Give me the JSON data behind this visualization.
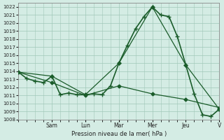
{
  "background_color": "#d4ece4",
  "grid_color": "#a0c8b8",
  "line_color": "#1a5c2a",
  "marker_color": "#1a5c2a",
  "xlabel": "Pression niveau de la mer( hPa )",
  "ylim": [
    1008,
    1022.5
  ],
  "yticks": [
    1008,
    1009,
    1010,
    1011,
    1012,
    1013,
    1014,
    1015,
    1016,
    1017,
    1018,
    1019,
    1020,
    1021,
    1022
  ],
  "xlim": [
    0,
    24
  ],
  "day_labels": [
    "Sam",
    "Lun",
    "Mar",
    "Mer",
    "Jeu",
    "V"
  ],
  "day_positions": [
    4,
    8,
    12,
    16,
    20,
    24
  ],
  "series1_x": [
    0,
    1,
    2,
    3,
    4,
    5,
    6,
    7,
    8,
    9,
    10,
    11,
    12,
    13,
    14,
    15,
    16,
    17,
    18,
    19,
    20,
    21,
    22,
    23,
    24
  ],
  "series1_y": [
    1013.9,
    1013.1,
    1012.8,
    1012.6,
    1013.4,
    1011.1,
    1011.3,
    1011.1,
    1011.1,
    1011.2,
    1011.1,
    1012.2,
    1015.0,
    1017.2,
    1019.3,
    1020.8,
    1022.0,
    1021.0,
    1020.8,
    1018.3,
    1014.8,
    1011.2,
    1008.6,
    1008.4,
    1009.3
  ],
  "series2_x": [
    0,
    4,
    8,
    12,
    16,
    20,
    24
  ],
  "series2_y": [
    1013.9,
    1013.4,
    1011.1,
    1015.0,
    1022.0,
    1014.8,
    1009.3
  ],
  "series3_x": [
    0,
    4,
    8,
    12,
    16,
    20,
    24
  ],
  "series3_y": [
    1013.9,
    1012.6,
    1011.0,
    1012.2,
    1011.2,
    1010.5,
    1009.5
  ],
  "lw1": 1.2,
  "lw2": 0.9,
  "lw3": 0.9
}
